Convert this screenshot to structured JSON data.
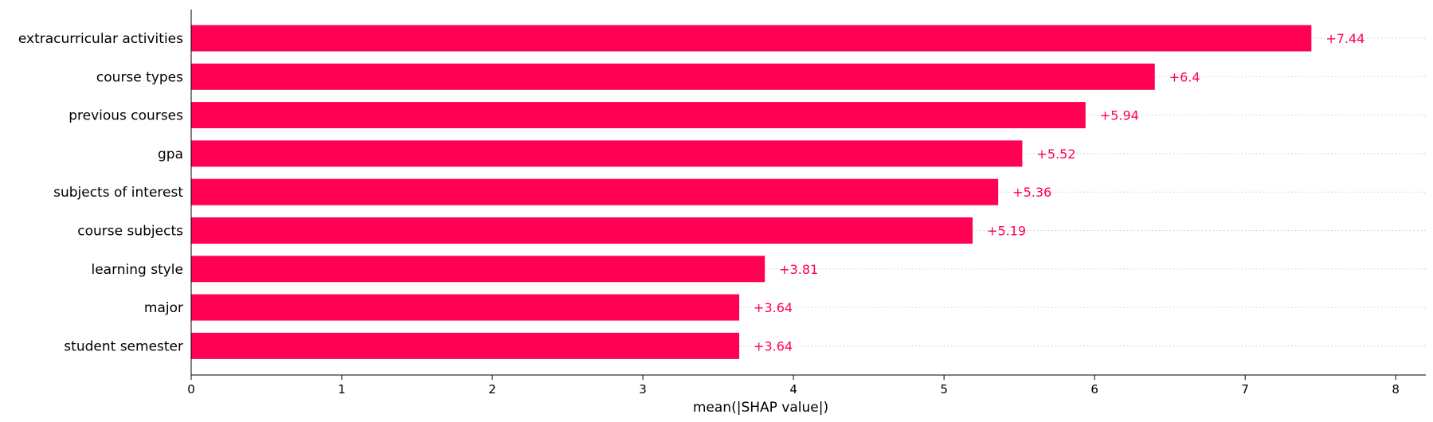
{
  "chart_data": {
    "type": "bar",
    "orientation": "horizontal",
    "categories": [
      "extracurricular activities",
      "course types",
      "previous courses",
      "gpa",
      "subjects of interest",
      "course subjects",
      "learning style",
      "major",
      "student semester"
    ],
    "values": [
      7.44,
      6.4,
      5.94,
      5.52,
      5.36,
      5.19,
      3.81,
      3.64,
      3.64
    ],
    "value_labels": [
      "+7.44",
      "+6.4",
      "+5.94",
      "+5.52",
      "+5.36",
      "+5.19",
      "+3.81",
      "+3.64",
      "+3.64"
    ],
    "xlabel": "mean(|SHAP value|)",
    "ylabel": "",
    "title": "",
    "xlim": [
      0,
      8.2
    ],
    "xticks": [
      0,
      1,
      2,
      3,
      4,
      5,
      6,
      7,
      8
    ],
    "grid": "dotted horizontal guide lines per row",
    "bar_color": "#ff0052",
    "label_color": "#ff0052"
  }
}
